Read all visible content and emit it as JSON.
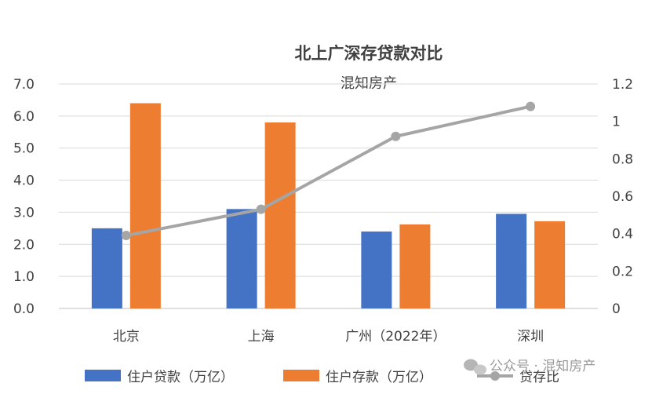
{
  "chart_data": {
    "type": "bar",
    "title": "北上广深存贷款对比",
    "subtitle": "混知房产",
    "categories": [
      "北京",
      "上海",
      "广州（2022年）",
      "深圳"
    ],
    "series": [
      {
        "name": "住户贷款（万亿）",
        "type": "bar",
        "axis": "left",
        "color": "#4472C4",
        "values": [
          2.5,
          3.1,
          2.4,
          2.95
        ]
      },
      {
        "name": "住户存款（万亿）",
        "type": "bar",
        "axis": "left",
        "color": "#ED7D31",
        "values": [
          6.4,
          5.8,
          2.62,
          2.72
        ]
      },
      {
        "name": "贷存比",
        "type": "line",
        "axis": "right",
        "color": "#A5A5A5",
        "values": [
          0.39,
          0.53,
          0.92,
          1.08
        ]
      }
    ],
    "left_axis": {
      "ylim": [
        0,
        7
      ],
      "ticks": [
        "0.0",
        "1.0",
        "2.0",
        "3.0",
        "4.0",
        "5.0",
        "6.0",
        "7.0"
      ]
    },
    "right_axis": {
      "ylim": [
        0,
        1.2
      ],
      "ticks": [
        "0",
        "0.2",
        "0.4",
        "0.6",
        "0.8",
        "1",
        "1.2"
      ]
    },
    "grid": true,
    "legend_position": "bottom"
  },
  "watermark": "公众号 · 混知房产"
}
